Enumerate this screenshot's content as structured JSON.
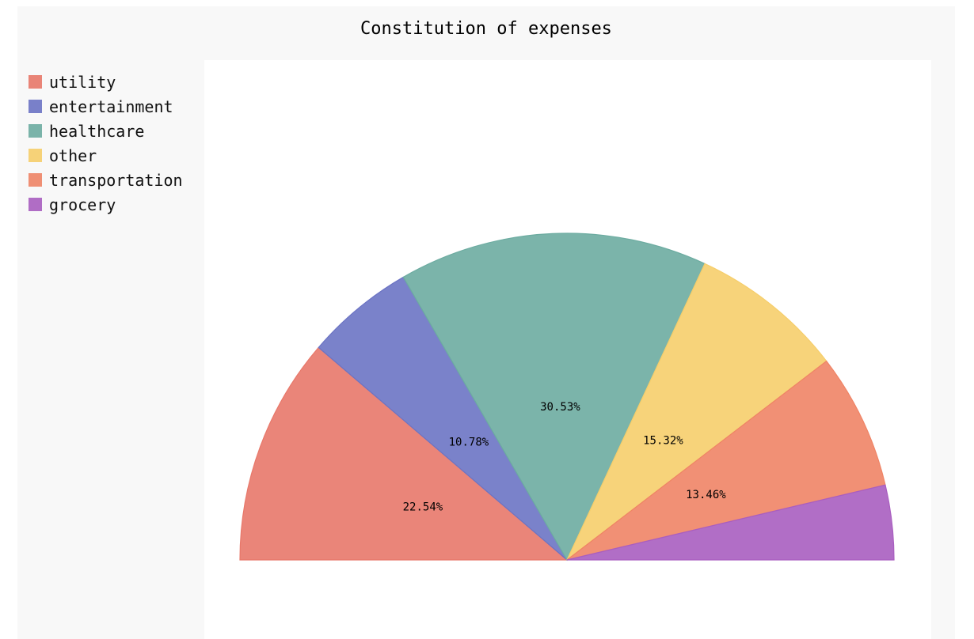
{
  "chart_data": {
    "type": "pie",
    "subtype": "half-pie",
    "title": "Constitution of expenses",
    "legend_position": "left",
    "series": [
      {
        "name": "utility",
        "value": 22.54,
        "label": "22.54%",
        "color": "#E8786A"
      },
      {
        "name": "entertainment",
        "value": 10.78,
        "label": "10.78%",
        "color": "#6C74C4"
      },
      {
        "name": "healthcare",
        "value": 30.53,
        "label": "30.53%",
        "color": "#6DACA1"
      },
      {
        "name": "other",
        "value": 15.32,
        "label": "15.32%",
        "color": "#F6CE6B"
      },
      {
        "name": "transportation",
        "value": 13.46,
        "label": "13.46%",
        "color": "#EF8466"
      },
      {
        "name": "grocery",
        "value": 7.37,
        "label": "",
        "color": "#A95EC0"
      }
    ]
  }
}
